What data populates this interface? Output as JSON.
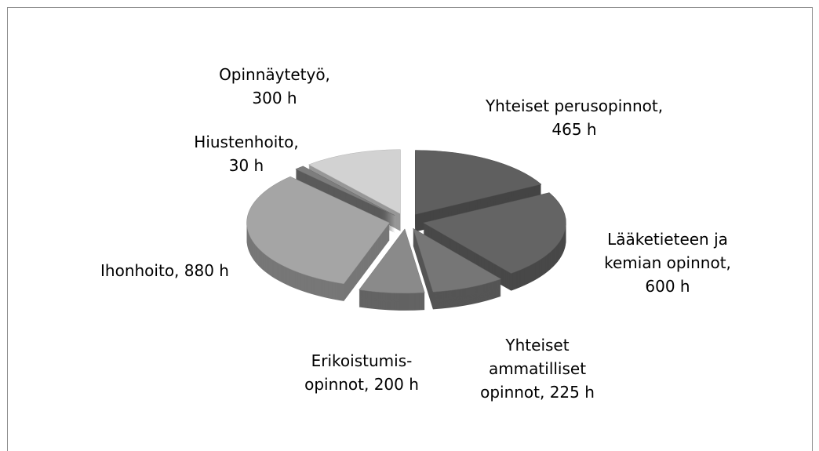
{
  "chart_data": {
    "type": "pie",
    "values": [
      465,
      600,
      225,
      200,
      880,
      30,
      300
    ],
    "value_labels": [
      "Yhteiset perusopinnot, 465 h",
      "Lääketieteen ja kemian opinnot, 600 h",
      "Yhteiset ammatilliset opinnot, 225 h",
      "Erikoistumis-opinnot, 200 h",
      "Ihonhoito, 880 h",
      "Hiustenhoito, 30 h",
      "Opinnäytetyö, 300 h"
    ],
    "colors": [
      "#5f5f5f",
      "#646464",
      "#767676",
      "#8a8a8a",
      "#a5a5a5",
      "#7d7d7d",
      "#d2d2d2"
    ]
  }
}
